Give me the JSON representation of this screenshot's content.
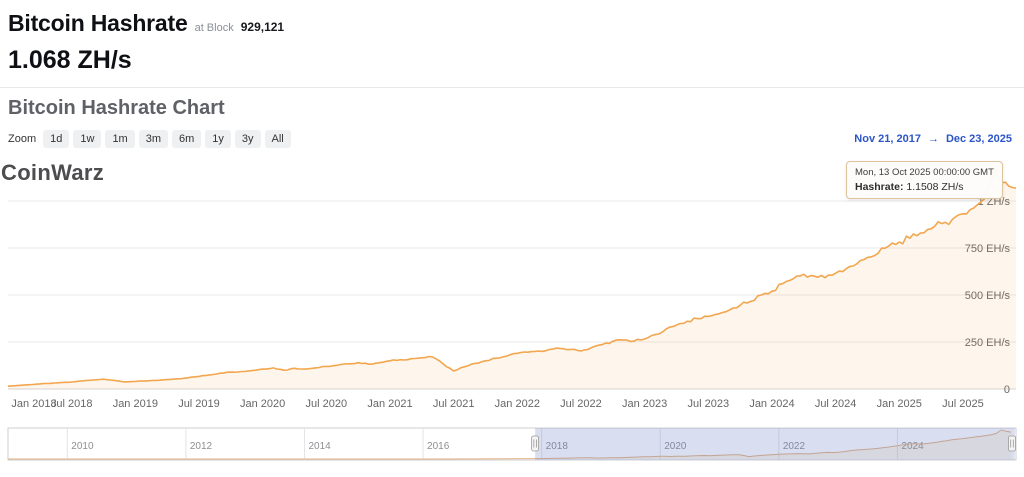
{
  "header": {
    "title": "Bitcoin Hashrate",
    "block_label": "at Block",
    "block_number": "929,121",
    "current_value": "1.068 ZH/s",
    "section_title": "Bitcoin Hashrate Chart"
  },
  "controls": {
    "zoom_label": "Zoom",
    "zoom_buttons": [
      "1d",
      "1w",
      "1m",
      "3m",
      "6m",
      "1y",
      "3y",
      "All"
    ],
    "range_start": "Nov 21, 2017",
    "range_arrow": "→",
    "range_end": "Dec 23, 2025"
  },
  "watermark": "CoinWarz",
  "tooltip": {
    "date": "Mon, 13 Oct 2025 00:00:00 GMT",
    "label": "Hashrate:",
    "value": "1.1508 ZH/s"
  },
  "chart_data": {
    "type": "area",
    "title": "Bitcoin Hashrate Chart",
    "unit": "EH/s",
    "x_start": "2018-01",
    "x_interval": "monthly",
    "ylim": [
      0,
      1250
    ],
    "grid": "horizontal",
    "y_ticks": [
      {
        "value": 1000,
        "label": "1 ZH/s"
      },
      {
        "value": 750,
        "label": "750 EH/s"
      },
      {
        "value": 500,
        "label": "500 EH/s"
      },
      {
        "value": 250,
        "label": "250 EH/s"
      },
      {
        "value": 0,
        "label": "0"
      }
    ],
    "x_tick_labels": [
      "Jan 2018",
      "Jul 2018",
      "Jan 2019",
      "Jul 2019",
      "Jan 2020",
      "Jul 2020",
      "Jan 2021",
      "Jul 2021",
      "Jan 2022",
      "Jul 2022",
      "Jan 2023",
      "Jul 2023",
      "Jan 2024",
      "Jul 2024",
      "Jan 2025",
      "Jul 2025"
    ],
    "series": [
      {
        "name": "Hashrate",
        "color": "#f2a64e",
        "values": [
          15,
          19,
          23,
          27,
          30,
          34,
          37,
          43,
          48,
          52,
          46,
          38,
          40,
          43,
          46,
          50,
          54,
          60,
          67,
          75,
          84,
          90,
          93,
          98,
          106,
          112,
          100,
          110,
          106,
          112,
          120,
          126,
          134,
          140,
          132,
          140,
          150,
          156,
          161,
          166,
          171,
          134,
          96,
          118,
          136,
          150,
          164,
          175,
          190,
          196,
          202,
          210,
          216,
          210,
          202,
          220,
          236,
          254,
          260,
          255,
          266,
          290,
          318,
          340,
          360,
          374,
          386,
          400,
          420,
          445,
          466,
          500,
          520,
          560,
          586,
          610,
          600,
          592,
          616,
          640,
          666,
          700,
          722,
          760,
          782,
          802,
          830,
          852,
          880,
          902,
          932,
          962,
          1010,
          1150,
          1100,
          1068
        ]
      }
    ]
  },
  "navigator": {
    "years": [
      "2010",
      "2012",
      "2014",
      "2016",
      "2018",
      "2020",
      "2022",
      "2024"
    ],
    "full_range_years": [
      2009,
      2026
    ],
    "selected_start_year": 2017.89,
    "selected_end_year": 2025.98,
    "mask_color": "#667fc4",
    "pre_series": {
      "years": [
        2009,
        2010,
        2011,
        2012,
        2013,
        2014,
        2015,
        2016,
        2017
      ],
      "values": [
        0,
        0,
        0,
        0.01,
        0.05,
        0.15,
        0.35,
        0.9,
        2.5
      ]
    }
  }
}
